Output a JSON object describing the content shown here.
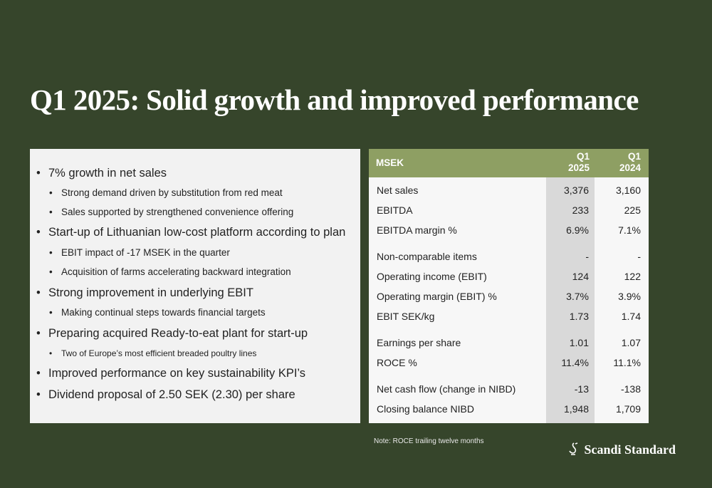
{
  "title": "Q1 2025: Solid growth and improved performance",
  "bullets": [
    {
      "level": 1,
      "text": "7% growth in net sales"
    },
    {
      "level": 2,
      "text": "Strong demand driven by substitution from red meat"
    },
    {
      "level": 2,
      "text": "Sales supported by strengthened convenience offering"
    },
    {
      "level": 1,
      "text": "Start-up of Lithuanian low-cost platform according to plan"
    },
    {
      "level": 2,
      "text": "EBIT impact of -17 MSEK in the quarter"
    },
    {
      "level": 2,
      "text": "Acquisition of farms accelerating backward integration"
    },
    {
      "level": 1,
      "text": "Strong improvement in underlying EBIT"
    },
    {
      "level": 2,
      "text": "Making continual steps towards financial targets"
    },
    {
      "level": 1,
      "text": "Preparing acquired Ready-to-eat plant for start-up"
    },
    {
      "level": 3,
      "text": "Two of Europe’s most efficient breaded poultry lines"
    },
    {
      "level": 1,
      "text": "Improved performance on key sustainability KPI’s"
    },
    {
      "level": 1,
      "text": "Dividend proposal of 2.50 SEK (2.30) per share"
    }
  ],
  "table": {
    "header": [
      "MSEK",
      "Q1 2025",
      "Q1 2024"
    ],
    "groups": [
      [
        [
          "Net sales",
          "3,376",
          "3,160"
        ],
        [
          "EBITDA",
          "233",
          "225"
        ],
        [
          "EBITDA margin %",
          "6.9%",
          "7.1%"
        ]
      ],
      [
        [
          "Non-comparable items",
          "-",
          "-"
        ],
        [
          "Operating income (EBIT)",
          "124",
          "122"
        ],
        [
          "Operating margin (EBIT) %",
          "3.7%",
          "3.9%"
        ],
        [
          "EBIT SEK/kg",
          "1.73",
          "1.74"
        ]
      ],
      [
        [
          "Earnings per share",
          "1.01",
          "1.07"
        ],
        [
          "ROCE %",
          "11.4%",
          "11.1%"
        ]
      ],
      [
        [
          "Net cash flow (change in NIBD)",
          "-13",
          "-138"
        ],
        [
          "Closing balance NIBD",
          "1,948",
          "1,709"
        ]
      ]
    ]
  },
  "note": "Note: ROCE trailing twelve months",
  "logo": "Scandi Standard"
}
